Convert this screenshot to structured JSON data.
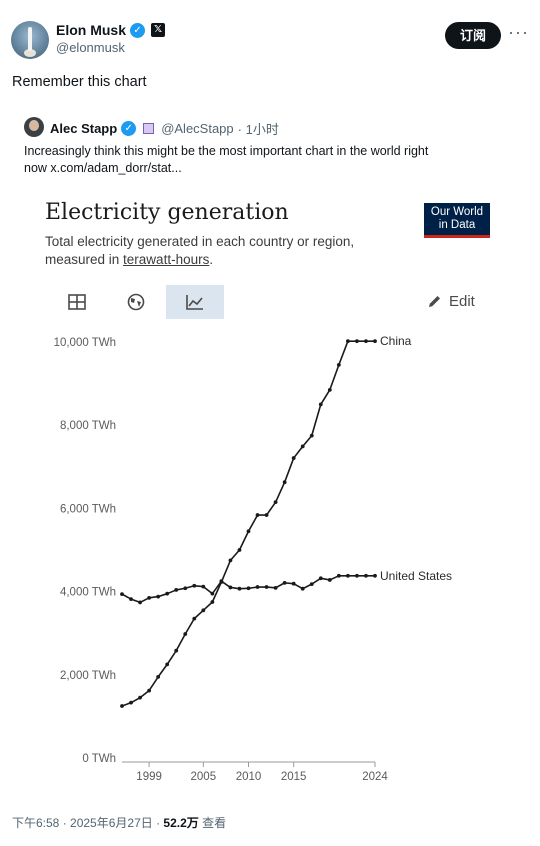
{
  "author": {
    "name": "Elon Musk",
    "handle": "@elonmusk",
    "follow_label": "订阅",
    "more_label": "···"
  },
  "tweet": {
    "text": "Remember this chart"
  },
  "quote": {
    "name": "Alec Stapp",
    "handle": "@AlecStapp",
    "time": "· 1小时",
    "text_line1": "Increasingly think this might be the most important chart in the world right",
    "text_line2": "now  x.com/adam_dorr/stat..."
  },
  "chart_header": {
    "title": "Electricity generation",
    "subtitle_line1": "Total electricity generated in each country or region,",
    "subtitle_prefix": "measured in ",
    "subtitle_link": "terawatt-hours",
    "subtitle_suffix": ".",
    "brand_line1": "Our World",
    "brand_line2": "in Data",
    "edit_label": "Edit",
    "tools": [
      "table-icon",
      "globe-icon",
      "line-chart-icon"
    ]
  },
  "chart_data": {
    "type": "line",
    "xlim": [
      1996,
      2024
    ],
    "ylim": [
      0,
      10000
    ],
    "x_ticks": [
      1999,
      2005,
      2010,
      2015,
      2024
    ],
    "y_ticks": [
      0,
      2000,
      4000,
      6000,
      8000,
      10000
    ],
    "y_tick_labels": [
      "0 TWh",
      "2,000 TWh",
      "4,000 TWh",
      "6,000 TWh",
      "8,000 TWh",
      "10,000 TWh"
    ],
    "grid": false,
    "series": [
      {
        "name": "China",
        "years": [
          1996,
          1997,
          1998,
          1999,
          2000,
          2001,
          2002,
          2003,
          2004,
          2005,
          2006,
          2007,
          2008,
          2009,
          2010,
          2011,
          2012,
          2013,
          2014,
          2015,
          2016,
          2017,
          2018,
          2019,
          2020,
          2021,
          2022,
          2023,
          2024
        ],
        "values": [
          1250,
          1330,
          1450,
          1620,
          1950,
          2250,
          2580,
          2980,
          3350,
          3550,
          3750,
          4230,
          4750,
          5000,
          5450,
          5840,
          5840,
          6150,
          6630,
          7210,
          7490,
          7750,
          8500,
          8850,
          9450,
          10020,
          10020,
          10020,
          10020
        ]
      },
      {
        "name": "United States",
        "years": [
          1996,
          1997,
          1998,
          1999,
          2000,
          2001,
          2002,
          2003,
          2004,
          2005,
          2006,
          2007,
          2008,
          2009,
          2010,
          2011,
          2012,
          2013,
          2014,
          2015,
          2016,
          2017,
          2018,
          2019,
          2020,
          2021,
          2022,
          2023,
          2024
        ],
        "values": [
          3940,
          3820,
          3740,
          3850,
          3880,
          3950,
          4040,
          4080,
          4140,
          4120,
          3950,
          4250,
          4100,
          4070,
          4080,
          4110,
          4110,
          4090,
          4210,
          4190,
          4070,
          4180,
          4320,
          4280,
          4380,
          4380,
          4380,
          4380,
          4380
        ]
      }
    ],
    "series_labels": [
      "China",
      "United States"
    ]
  },
  "footer": {
    "time": "下午6:58 · 2025年6月27日 · ",
    "views_count": "52.2万",
    "views_label": " 查看"
  }
}
